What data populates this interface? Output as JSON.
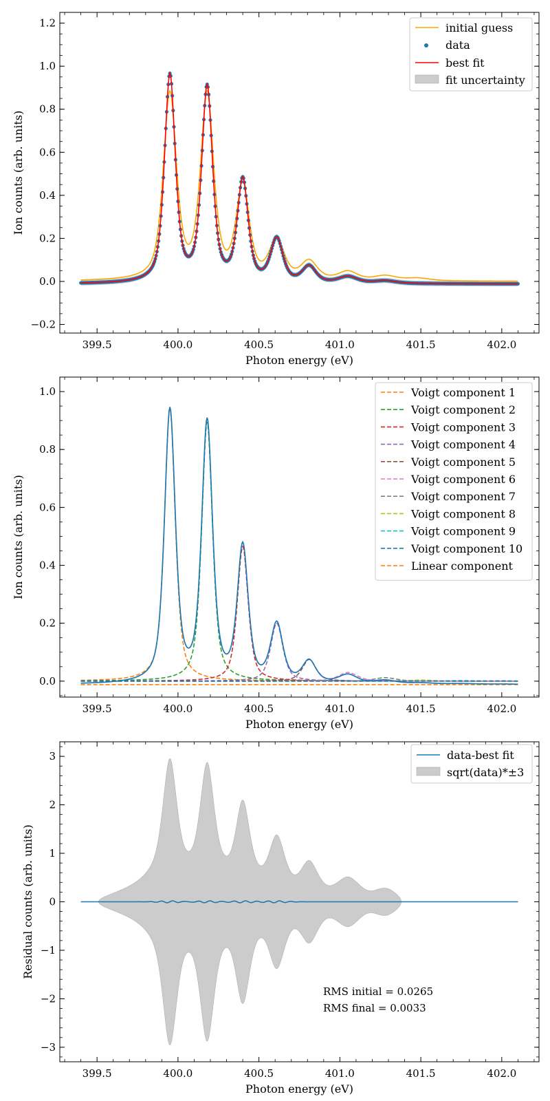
{
  "chart_data": [
    {
      "type": "line",
      "xlabel": "Photon energy (eV)",
      "ylabel": "Ion counts (arb. units)",
      "xlim": [
        399.27,
        402.23
      ],
      "ylim": [
        -0.24,
        1.25
      ],
      "xticks": [
        399.5,
        400.0,
        400.5,
        401.0,
        401.5,
        402.0
      ],
      "xtick_labels": [
        "399.5",
        "400.0",
        "400.5",
        "401.0",
        "401.5",
        "402.0"
      ],
      "yticks": [
        -0.2,
        0.0,
        0.2,
        0.4,
        0.6,
        0.8,
        1.0,
        1.2
      ],
      "ytick_labels": [
        "−0.2",
        "0.0",
        "0.2",
        "0.4",
        "0.6",
        "0.8",
        "1.0",
        "1.2"
      ],
      "legend_position": "top-right",
      "x_range": [
        399.4,
        402.1
      ],
      "model_peaks": {
        "data": {
          "centers": [
            399.95,
            400.18,
            400.4,
            400.61,
            400.81,
            401.05,
            401.28
          ],
          "amps": [
            0.96,
            0.9,
            0.47,
            0.2,
            0.075,
            0.03,
            0.012
          ],
          "widths": [
            0.04,
            0.04,
            0.04,
            0.045,
            0.05,
            0.07,
            0.08
          ],
          "linear": [
            -0.012,
            0.0
          ]
        },
        "guess": {
          "centers": [
            399.95,
            400.18,
            400.4,
            400.61,
            400.81,
            401.05,
            401.28,
            401.48
          ],
          "amps": [
            0.86,
            0.85,
            0.43,
            0.18,
            0.085,
            0.04,
            0.022,
            0.012
          ],
          "widths": [
            0.048,
            0.048,
            0.048,
            0.055,
            0.06,
            0.07,
            0.08,
            0.09
          ],
          "linear": [
            0.0,
            0.0
          ]
        }
      },
      "series": [
        {
          "name": "initial guess",
          "color": "#ffa500",
          "style": "solid"
        },
        {
          "name": "data",
          "color": "#1f77b4",
          "style": "scatter"
        },
        {
          "name": "best fit",
          "color": "#ff0000",
          "style": "solid"
        },
        {
          "name": "fit uncertainty",
          "color": "#cccccc",
          "style": "band"
        }
      ]
    },
    {
      "type": "line",
      "xlabel": "Photon energy (eV)",
      "ylabel": "Ion counts (arb. units)",
      "xlim": [
        399.27,
        402.23
      ],
      "ylim": [
        -0.055,
        1.05
      ],
      "xticks": [
        399.5,
        400.0,
        400.5,
        401.0,
        401.5,
        402.0
      ],
      "xtick_labels": [
        "399.5",
        "400.0",
        "400.5",
        "401.0",
        "401.5",
        "402.0"
      ],
      "yticks": [
        0.0,
        0.2,
        0.4,
        0.6,
        0.8,
        1.0
      ],
      "ytick_labels": [
        "0.0",
        "0.2",
        "0.4",
        "0.6",
        "0.8",
        "1.0"
      ],
      "legend_position": "top-right",
      "x_range": [
        399.4,
        402.1
      ],
      "total_color": "#1f77b4",
      "series": [
        {
          "name": "Voigt component 1",
          "color": "#ff7f0e",
          "center": 399.95,
          "amp": 0.94,
          "width": 0.04
        },
        {
          "name": "Voigt component 2",
          "color": "#2ca02c",
          "center": 400.18,
          "amp": 0.895,
          "width": 0.04
        },
        {
          "name": "Voigt component 3",
          "color": "#d62728",
          "center": 400.4,
          "amp": 0.465,
          "width": 0.04
        },
        {
          "name": "Voigt component 4",
          "color": "#9467bd",
          "center": 400.61,
          "amp": 0.2,
          "width": 0.045
        },
        {
          "name": "Voigt component 5",
          "color": "#8c564b",
          "center": 400.81,
          "amp": 0.075,
          "width": 0.05
        },
        {
          "name": "Voigt component 6",
          "color": "#e377c2",
          "center": 401.05,
          "amp": 0.03,
          "width": 0.07
        },
        {
          "name": "Voigt component 7",
          "color": "#7f7f7f",
          "center": 401.28,
          "amp": 0.012,
          "width": 0.08
        },
        {
          "name": "Voigt component 8",
          "color": "#bcbd22",
          "center": 401.5,
          "amp": 0.004,
          "width": 0.09
        },
        {
          "name": "Voigt component 9",
          "color": "#17becf",
          "center": 401.75,
          "amp": 0.002,
          "width": 0.1
        },
        {
          "name": "Voigt component 10",
          "color": "#1f77b4",
          "center": 402.0,
          "amp": 0.001,
          "width": 0.1
        },
        {
          "name": "Linear component",
          "color": "#ff7f0e",
          "linear": [
            -0.012,
            0.0
          ]
        }
      ]
    },
    {
      "type": "line",
      "xlabel": "Photon energy (eV)",
      "ylabel": "Residual counts (arb. units)",
      "xlim": [
        399.27,
        402.23
      ],
      "ylim": [
        -3.3,
        3.3
      ],
      "xticks": [
        399.5,
        400.0,
        400.5,
        401.0,
        401.5,
        402.0
      ],
      "xtick_labels": [
        "399.5",
        "400.0",
        "400.5",
        "401.0",
        "401.5",
        "402.0"
      ],
      "yticks": [
        -3,
        -2,
        -1,
        0,
        1,
        2,
        3
      ],
      "ytick_labels": [
        "−3",
        "−2",
        "−1",
        "0",
        "1",
        "2",
        "3"
      ],
      "legend_position": "top-right",
      "x_range": [
        399.4,
        402.1
      ],
      "band_scale": 3.0,
      "series": [
        {
          "name": "data-best fit",
          "color": "#1f77b4",
          "style": "solid"
        },
        {
          "name": "sqrt(data)*±3",
          "color": "#cccccc",
          "style": "band"
        }
      ],
      "annotations": [
        "RMS initial = 0.0265",
        "RMS final = 0.0033"
      ]
    }
  ]
}
